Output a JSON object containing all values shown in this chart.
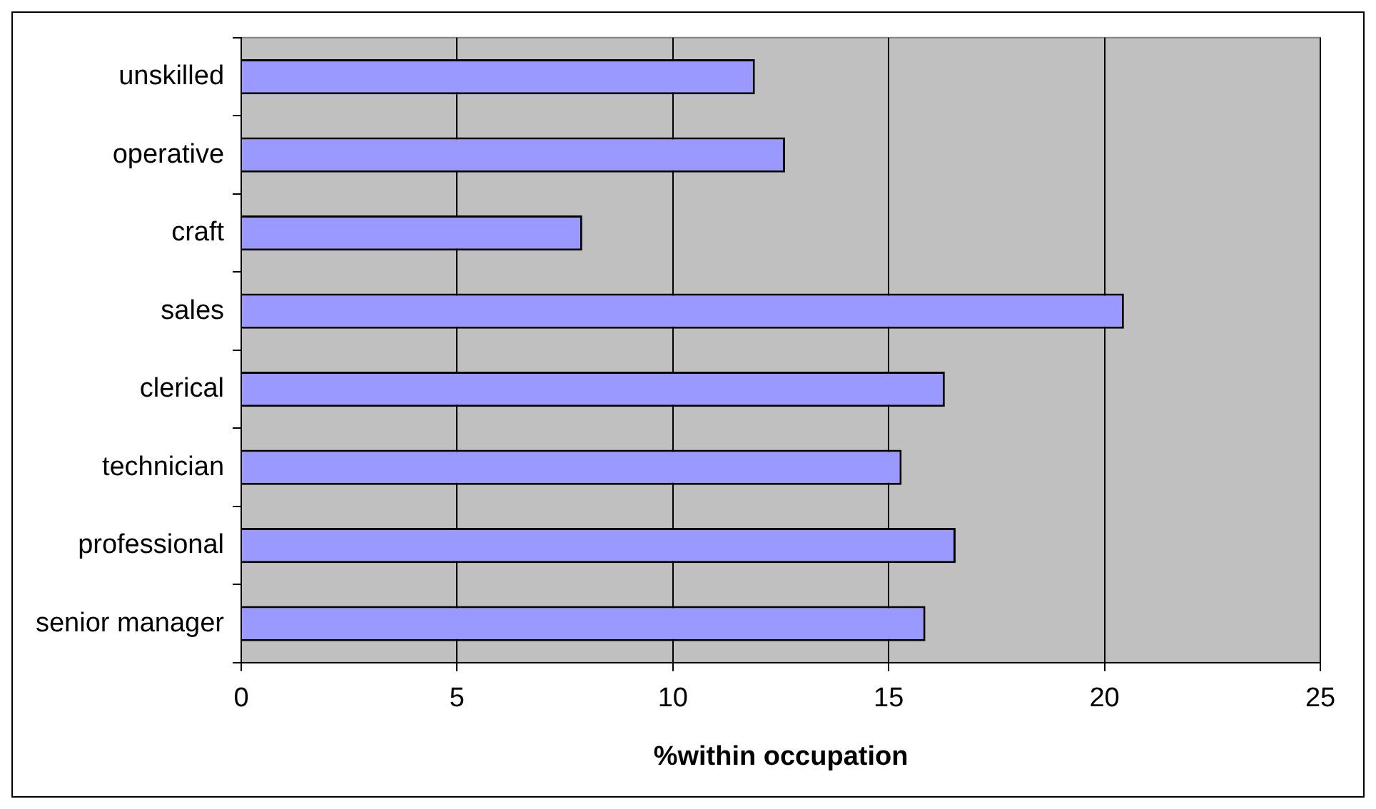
{
  "chart_data": {
    "type": "bar",
    "orientation": "horizontal",
    "xlabel": "%within occupation",
    "categories": [
      "unskilled",
      "operative",
      "craft",
      "sales",
      "clerical",
      "technician",
      "professional",
      "senior manager"
    ],
    "values": [
      11.9,
      12.6,
      7.9,
      20.45,
      16.3,
      15.3,
      16.55,
      15.85
    ],
    "color": "#9999ff",
    "xlim": [
      0,
      25
    ],
    "xticks": [
      0,
      5,
      10,
      15,
      20,
      25
    ],
    "grid": "x"
  }
}
